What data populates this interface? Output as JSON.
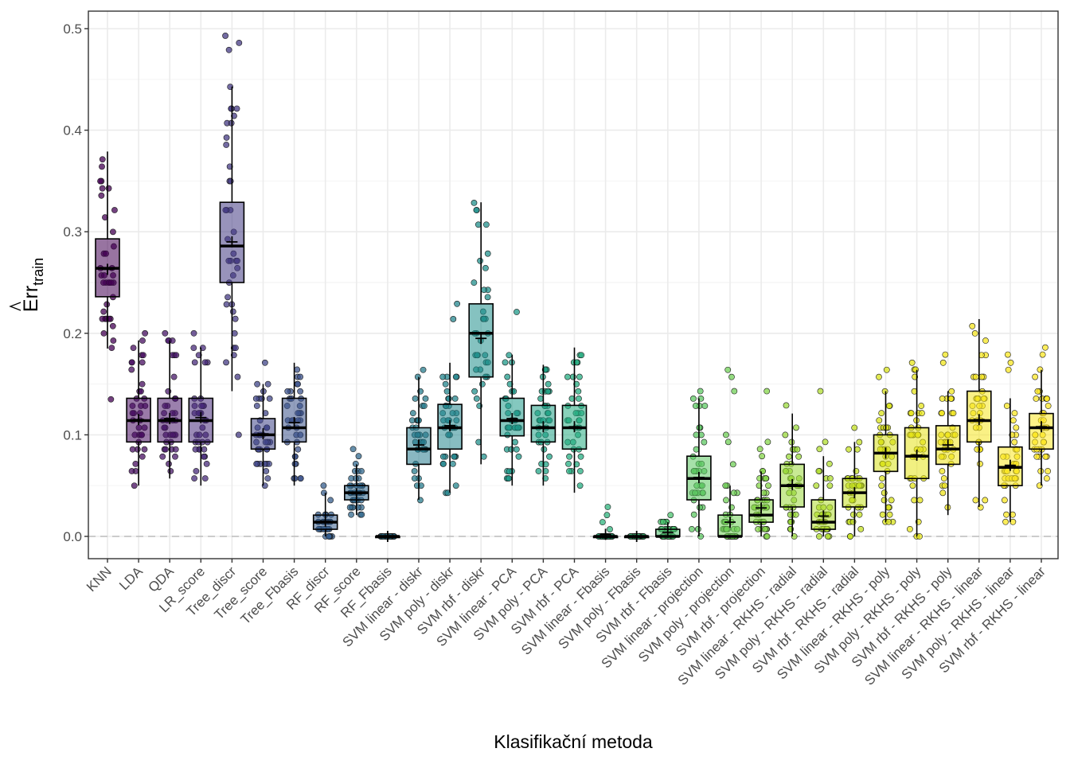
{
  "chart_data": {
    "type": "boxplot",
    "title": "",
    "xlabel": "Klasifikační metoda",
    "ylabel_main": "Err",
    "ylabel_subscript": "train",
    "ylabel_hat": true,
    "ylim": [
      -0.022,
      0.518
    ],
    "yticks": [
      0.0,
      0.1,
      0.2,
      0.3,
      0.4,
      0.5
    ],
    "ytick_labels": [
      "0.0",
      "0.1",
      "0.2",
      "0.3",
      "0.4",
      "0.5"
    ],
    "grid": true,
    "reference_line": {
      "y": 0.0,
      "style": "dashed",
      "color": "#bebebe"
    },
    "legend": "none",
    "mean_marker": "cross",
    "categories": [
      "KNN",
      "LDA",
      "QDA",
      "LR_score",
      "Tree_discr",
      "Tree_score",
      "Tree_Fbasis",
      "RF_discr",
      "RF_score",
      "RF_Fbasis",
      "SVM linear - diskr",
      "SVM poly - diskr",
      "SVM rbf - diskr",
      "SVM linear - PCA",
      "SVM poly - PCA",
      "SVM rbf - PCA",
      "SVM linear - Fbasis",
      "SVM poly - Fbasis",
      "SVM rbf - Fbasis",
      "SVM linear - projection",
      "SVM poly - projection",
      "SVM rbf - projection",
      "SVM linear - RKHS - radial",
      "SVM poly - RKHS - radial",
      "SVM rbf - RKHS - radial",
      "SVM linear - RKHS - poly",
      "SVM poly - RKHS - poly",
      "SVM rbf - RKHS - poly",
      "SVM linear - RKHS - linear",
      "SVM poly - RKHS - linear",
      "SVM rbf - RKHS - linear"
    ],
    "colors": [
      "#440154",
      "#470D60",
      "#48186A",
      "#472A7A",
      "#443A83",
      "#404688",
      "#3B528B",
      "#365D8D",
      "#31688E",
      "#2C728E",
      "#287C8E",
      "#24868E",
      "#21908C",
      "#1F9A8A",
      "#20A386",
      "#26AD81",
      "#2EB37C",
      "#3BBB75",
      "#4AC16D",
      "#5DC863",
      "#70CF57",
      "#86D549",
      "#9BD93C",
      "#B0DD2F",
      "#C4E021",
      "#D8E219",
      "#E5E419",
      "#F0E51C",
      "#F6E620",
      "#FBE723",
      "#FDE725"
    ],
    "series": [
      {
        "name": "KNN",
        "whisker_low": 0.185,
        "q1": 0.236,
        "median": 0.264,
        "q3": 0.293,
        "whisker_high": 0.379,
        "mean": 0.263,
        "outliers": [
          0.135
        ]
      },
      {
        "name": "LDA",
        "whisker_low": 0.05,
        "q1": 0.093,
        "median": 0.114,
        "q3": 0.136,
        "whisker_high": 0.193,
        "mean": 0.115,
        "outliers": [
          0.2
        ]
      },
      {
        "name": "QDA",
        "whisker_low": 0.057,
        "q1": 0.093,
        "median": 0.114,
        "q3": 0.136,
        "whisker_high": 0.193,
        "mean": 0.116,
        "outliers": [
          0.2
        ]
      },
      {
        "name": "LR_score",
        "whisker_low": 0.05,
        "q1": 0.093,
        "median": 0.114,
        "q3": 0.136,
        "whisker_high": 0.186,
        "mean": 0.117,
        "outliers": [
          0.2
        ]
      },
      {
        "name": "Tree_discr",
        "whisker_low": 0.143,
        "q1": 0.25,
        "median": 0.286,
        "q3": 0.329,
        "whisker_high": 0.443,
        "mean": 0.29,
        "outliers": [
          0.1,
          0.479,
          0.486,
          0.493
        ]
      },
      {
        "name": "Tree_score",
        "whisker_low": 0.05,
        "q1": 0.086,
        "median": 0.1,
        "q3": 0.116,
        "whisker_high": 0.15,
        "mean": 0.101,
        "outliers": [
          0.171
        ]
      },
      {
        "name": "Tree_Fbasis",
        "whisker_low": 0.05,
        "q1": 0.093,
        "median": 0.107,
        "q3": 0.136,
        "whisker_high": 0.171,
        "mean": 0.112,
        "outliers": []
      },
      {
        "name": "RF_discr",
        "whisker_low": 0.0,
        "q1": 0.007,
        "median": 0.014,
        "q3": 0.021,
        "whisker_high": 0.043,
        "mean": 0.015,
        "outliers": [
          0.05
        ]
      },
      {
        "name": "RF_score",
        "whisker_low": 0.021,
        "q1": 0.036,
        "median": 0.043,
        "q3": 0.05,
        "whisker_high": 0.071,
        "mean": 0.042,
        "outliers": [
          0.079,
          0.086
        ]
      },
      {
        "name": "RF_Fbasis",
        "whisker_low": 0.0,
        "q1": 0.0,
        "median": 0.0,
        "q3": 0.0,
        "whisker_high": 0.0,
        "mean": 0.0,
        "outliers": []
      },
      {
        "name": "SVM linear - diskr",
        "whisker_low": 0.036,
        "q1": 0.071,
        "median": 0.086,
        "q3": 0.107,
        "whisker_high": 0.157,
        "mean": 0.09,
        "outliers": [
          0.164
        ]
      },
      {
        "name": "SVM poly - diskr",
        "whisker_low": 0.043,
        "q1": 0.086,
        "median": 0.107,
        "q3": 0.13,
        "whisker_high": 0.171,
        "mean": 0.109,
        "outliers": [
          0.214,
          0.229
        ]
      },
      {
        "name": "SVM rbf - diskr",
        "whisker_low": 0.071,
        "q1": 0.157,
        "median": 0.2,
        "q3": 0.229,
        "whisker_high": 0.329,
        "mean": 0.195,
        "outliers": []
      },
      {
        "name": "SVM linear - PCA",
        "whisker_low": 0.05,
        "q1": 0.099,
        "median": 0.114,
        "q3": 0.136,
        "whisker_high": 0.179,
        "mean": 0.116,
        "outliers": [
          0.221,
          0.064
        ]
      },
      {
        "name": "SVM poly - PCA",
        "whisker_low": 0.05,
        "q1": 0.093,
        "median": 0.107,
        "q3": 0.129,
        "whisker_high": 0.169,
        "mean": 0.108,
        "outliers": [
          0.071
        ]
      },
      {
        "name": "SVM rbf - PCA",
        "whisker_low": 0.043,
        "q1": 0.086,
        "median": 0.107,
        "q3": 0.129,
        "whisker_high": 0.186,
        "mean": 0.108,
        "outliers": [
          0.071
        ]
      },
      {
        "name": "SVM linear - Fbasis",
        "whisker_low": 0.0,
        "q1": 0.0,
        "median": 0.0,
        "q3": 0.0,
        "whisker_high": 0.0,
        "mean": 0.002,
        "outliers": [
          0.007,
          0.014,
          0.021,
          0.029
        ]
      },
      {
        "name": "SVM poly - Fbasis",
        "whisker_low": 0.0,
        "q1": 0.0,
        "median": 0.0,
        "q3": 0.0,
        "whisker_high": 0.0,
        "mean": 0.0,
        "outliers": []
      },
      {
        "name": "SVM rbf - Fbasis",
        "whisker_low": 0.0,
        "q1": 0.0,
        "median": 0.0,
        "q3": 0.007,
        "whisker_high": 0.014,
        "mean": 0.004,
        "outliers": [
          0.021
        ]
      },
      {
        "name": "SVM linear - projection",
        "whisker_low": 0.0,
        "q1": 0.036,
        "median": 0.057,
        "q3": 0.079,
        "whisker_high": 0.136,
        "mean": 0.058,
        "outliers": [
          0.143
        ]
      },
      {
        "name": "SVM poly - projection",
        "whisker_low": 0.0,
        "q1": 0.0,
        "median": 0.0,
        "q3": 0.021,
        "whisker_high": 0.05,
        "mean": 0.014,
        "outliers": [
          0.071,
          0.093,
          0.1,
          0.143,
          0.157,
          0.164
        ]
      },
      {
        "name": "SVM rbf - projection",
        "whisker_low": 0.0,
        "q1": 0.014,
        "median": 0.021,
        "q3": 0.036,
        "whisker_high": 0.064,
        "mean": 0.028,
        "outliers": [
          0.079,
          0.086,
          0.093,
          0.143
        ]
      },
      {
        "name": "SVM linear - RKHS - radial",
        "whisker_low": 0.0,
        "q1": 0.029,
        "median": 0.05,
        "q3": 0.071,
        "whisker_high": 0.121,
        "mean": 0.051,
        "outliers": [
          0.129
        ]
      },
      {
        "name": "SVM poly - RKHS - radial",
        "whisker_low": 0.0,
        "q1": 0.007,
        "median": 0.014,
        "q3": 0.036,
        "whisker_high": 0.079,
        "mean": 0.02,
        "outliers": [
          0.086,
          0.093,
          0.143
        ]
      },
      {
        "name": "SVM rbf - RKHS - radial",
        "whisker_low": 0.0,
        "q1": 0.029,
        "median": 0.043,
        "q3": 0.057,
        "whisker_high": 0.093,
        "mean": 0.043,
        "outliers": [
          0.107
        ]
      },
      {
        "name": "SVM linear - RKHS - poly",
        "whisker_low": 0.014,
        "q1": 0.064,
        "median": 0.082,
        "q3": 0.1,
        "whisker_high": 0.143,
        "mean": 0.082,
        "outliers": [
          0.157,
          0.164
        ]
      },
      {
        "name": "SVM poly - RKHS - poly",
        "whisker_low": 0.0,
        "q1": 0.057,
        "median": 0.079,
        "q3": 0.107,
        "whisker_high": 0.164,
        "mean": 0.08,
        "outliers": [
          0.171
        ]
      },
      {
        "name": "SVM rbf - RKHS - poly",
        "whisker_low": 0.021,
        "q1": 0.071,
        "median": 0.086,
        "q3": 0.109,
        "whisker_high": 0.143,
        "mean": 0.09,
        "outliers": [
          0.171,
          0.179
        ]
      },
      {
        "name": "SVM linear - RKHS - linear",
        "whisker_low": 0.029,
        "q1": 0.093,
        "median": 0.114,
        "q3": 0.143,
        "whisker_high": 0.214,
        "mean": 0.115,
        "outliers": []
      },
      {
        "name": "SVM poly - RKHS - linear",
        "whisker_low": 0.014,
        "q1": 0.05,
        "median": 0.068,
        "q3": 0.088,
        "whisker_high": 0.136,
        "mean": 0.07,
        "outliers": [
          0.164,
          0.171,
          0.179
        ]
      },
      {
        "name": "SVM rbf - RKHS - linear",
        "whisker_low": 0.05,
        "q1": 0.086,
        "median": 0.107,
        "q3": 0.121,
        "whisker_high": 0.164,
        "mean": 0.108,
        "outliers": [
          0.179,
          0.186
        ]
      }
    ]
  }
}
